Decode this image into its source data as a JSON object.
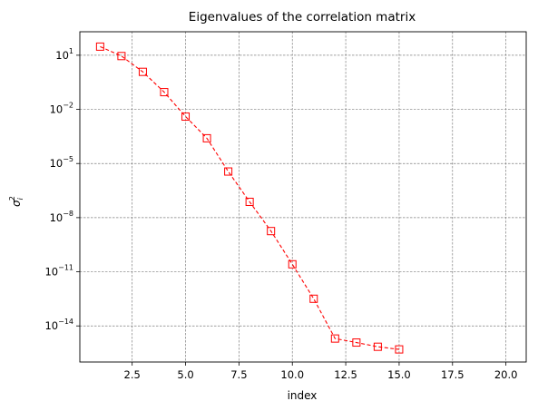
{
  "chart_data": {
    "type": "line",
    "title": "Eigenvalues of the correlation matrix",
    "xlabel": "index",
    "ylabel": "σ_i^2",
    "xlim": [
      0.05,
      20.95
    ],
    "ylim": [
      1e-16,
      200
    ],
    "yscale": "log",
    "grid": true,
    "xticks": [
      2.5,
      5.0,
      7.5,
      10.0,
      12.5,
      15.0,
      17.5,
      20.0
    ],
    "xtick_labels": [
      "2.5",
      "5.0",
      "7.5",
      "10.0",
      "12.5",
      "15.0",
      "17.5",
      "20.0"
    ],
    "yticks": [
      {
        "value": 10,
        "base": "10",
        "exp": "1"
      },
      {
        "value": 0.01,
        "base": "10",
        "exp": "−2"
      },
      {
        "value": 1e-05,
        "base": "10",
        "exp": "−5"
      },
      {
        "value": 1e-08,
        "base": "10",
        "exp": "−8"
      },
      {
        "value": 1e-11,
        "base": "10",
        "exp": "−11"
      },
      {
        "value": 1e-14,
        "base": "10",
        "exp": "−14"
      }
    ],
    "series": [
      {
        "color": "#ff0000",
        "marker": "square",
        "linestyle": "dashed",
        "x": [
          1,
          2,
          3,
          4,
          5,
          6,
          7,
          8,
          9,
          10,
          11,
          12,
          13,
          14,
          15
        ],
        "y": [
          30,
          9,
          1.2,
          0.09,
          0.004,
          0.00025,
          3.6e-06,
          7.5e-08,
          1.8e-09,
          2.6e-11,
          3.2e-13,
          2e-15,
          1.2e-15,
          7e-16,
          5e-16
        ]
      }
    ]
  }
}
